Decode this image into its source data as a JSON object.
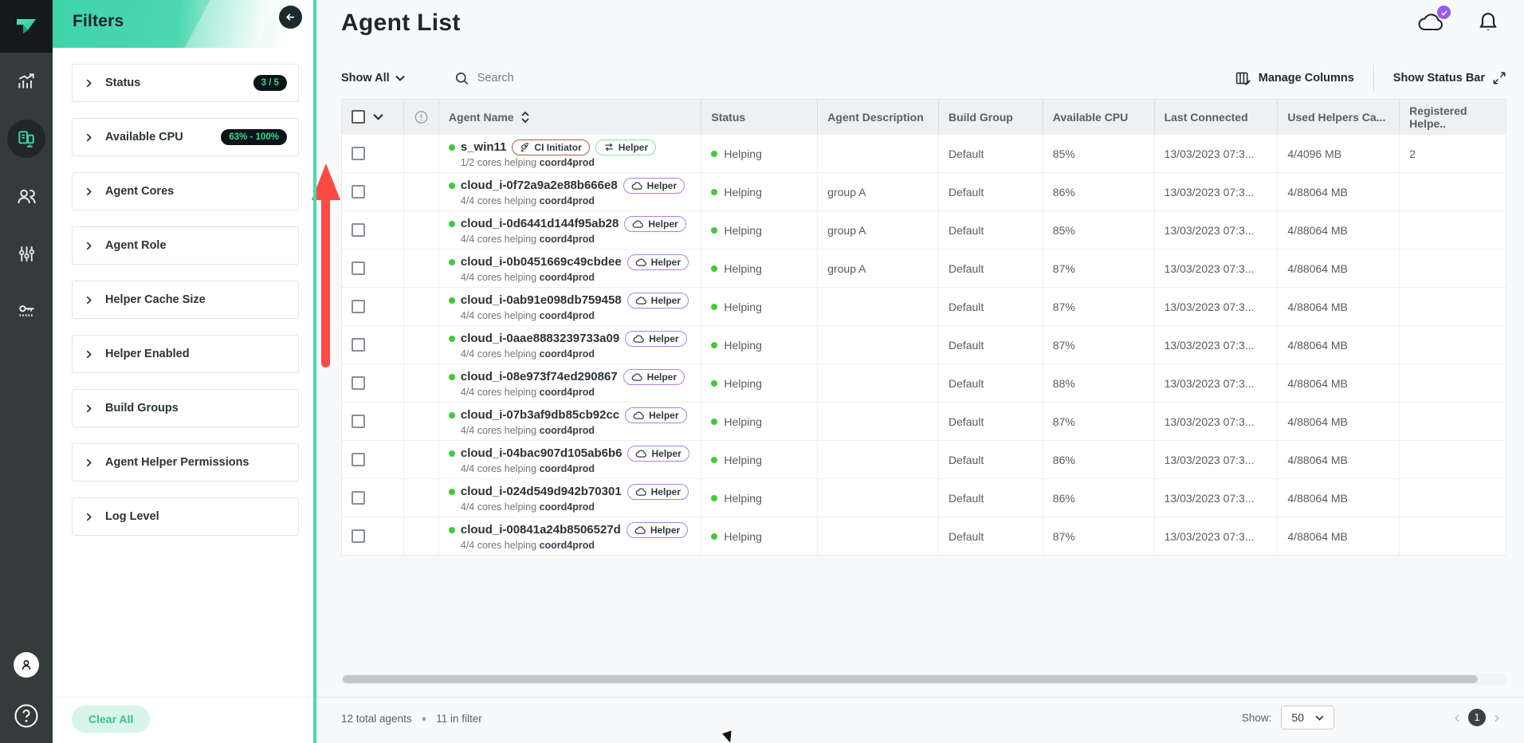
{
  "accent": {
    "teal": "#47dab0",
    "badge_green": "#2fdf8d",
    "status_green": "#3fcb3b",
    "purple_badge": "#9a5bf2",
    "red_arrow": "#fb4b43"
  },
  "sidebar": {
    "items": [
      {
        "id": "dashboard",
        "icon": "chart-icon",
        "active": false
      },
      {
        "id": "agents",
        "icon": "agents-icon",
        "active": true
      },
      {
        "id": "users",
        "icon": "users-icon",
        "active": false
      },
      {
        "id": "settings",
        "icon": "sliders-icon",
        "active": false
      },
      {
        "id": "license",
        "icon": "key-icon",
        "active": false
      }
    ]
  },
  "filters": {
    "title": "Filters",
    "items": [
      {
        "label": "Status",
        "badge": "3 / 5"
      },
      {
        "label": "Available CPU",
        "badge": "63% - 100%"
      },
      {
        "label": "Agent Cores",
        "badge": ""
      },
      {
        "label": "Agent Role",
        "badge": ""
      },
      {
        "label": "Helper Cache Size",
        "badge": ""
      },
      {
        "label": "Helper Enabled",
        "badge": ""
      },
      {
        "label": "Build Groups",
        "badge": ""
      },
      {
        "label": "Agent Helper Permissions",
        "badge": ""
      },
      {
        "label": "Log Level",
        "badge": ""
      }
    ],
    "clear_all_label": "Clear All"
  },
  "header": {
    "title": "Agent List"
  },
  "toolbar": {
    "show_all_label": "Show All",
    "search_placeholder": "Search",
    "manage_columns_label": "Manage Columns",
    "show_status_bar_label": "Show Status Bar"
  },
  "table": {
    "columns": {
      "name": "Agent Name",
      "status": "Status",
      "description": "Agent Description",
      "build_group": "Build Group",
      "available_cpu": "Available CPU",
      "last_connected": "Last Connected",
      "used_helpers": "Used Helpers Ca...",
      "registered_helpers": "Registered Helpe.."
    },
    "rows": [
      {
        "name": "s_win11",
        "tags": [
          {
            "label": "CI Initiator",
            "icon": "rocket-icon",
            "style": "ci"
          },
          {
            "label": "Helper",
            "icon": "swap-icon",
            "style": "green"
          }
        ],
        "cores": "1/2 cores helping",
        "coordinator": "coord4prod",
        "status": "Helping",
        "description": "",
        "build_group": "Default",
        "available_cpu": "85%",
        "last_connected": "13/03/2023 07:3...",
        "used_helpers": "4/4096 MB",
        "registered_helpers": "2"
      },
      {
        "name": "cloud_i-0f72a9a2e88b666e8",
        "tags": [
          {
            "label": "Helper",
            "icon": "cloud-icon",
            "style": "purple"
          }
        ],
        "cores": "4/4 cores helping",
        "coordinator": "coord4prod",
        "status": "Helping",
        "description": "group A",
        "build_group": "Default",
        "available_cpu": "86%",
        "last_connected": "13/03/2023 07:3...",
        "used_helpers": "4/88064 MB",
        "registered_helpers": ""
      },
      {
        "name": "cloud_i-0d6441d144f95ab28",
        "tags": [
          {
            "label": "Helper",
            "icon": "cloud-icon",
            "style": "purple"
          }
        ],
        "cores": "4/4 cores helping",
        "coordinator": "coord4prod",
        "status": "Helping",
        "description": "group A",
        "build_group": "Default",
        "available_cpu": "85%",
        "last_connected": "13/03/2023 07:3...",
        "used_helpers": "4/88064 MB",
        "registered_helpers": ""
      },
      {
        "name": "cloud_i-0b0451669c49cbdee",
        "tags": [
          {
            "label": "Helper",
            "icon": "cloud-icon",
            "style": "purple"
          }
        ],
        "cores": "4/4 cores helping",
        "coordinator": "coord4prod",
        "status": "Helping",
        "description": "group A",
        "build_group": "Default",
        "available_cpu": "87%",
        "last_connected": "13/03/2023 07:3...",
        "used_helpers": "4/88064 MB",
        "registered_helpers": ""
      },
      {
        "name": "cloud_i-0ab91e098db759458",
        "tags": [
          {
            "label": "Helper",
            "icon": "cloud-icon",
            "style": "purple"
          }
        ],
        "cores": "4/4 cores helping",
        "coordinator": "coord4prod",
        "status": "Helping",
        "description": "",
        "build_group": "Default",
        "available_cpu": "87%",
        "last_connected": "13/03/2023 07:3...",
        "used_helpers": "4/88064 MB",
        "registered_helpers": ""
      },
      {
        "name": "cloud_i-0aae8883239733a09",
        "tags": [
          {
            "label": "Helper",
            "icon": "cloud-icon",
            "style": "purple"
          }
        ],
        "cores": "4/4 cores helping",
        "coordinator": "coord4prod",
        "status": "Helping",
        "description": "",
        "build_group": "Default",
        "available_cpu": "87%",
        "last_connected": "13/03/2023 07:3...",
        "used_helpers": "4/88064 MB",
        "registered_helpers": ""
      },
      {
        "name": "cloud_i-08e973f74ed290867",
        "tags": [
          {
            "label": "Helper",
            "icon": "cloud-icon",
            "style": "purple"
          }
        ],
        "cores": "4/4 cores helping",
        "coordinator": "coord4prod",
        "status": "Helping",
        "description": "",
        "build_group": "Default",
        "available_cpu": "88%",
        "last_connected": "13/03/2023 07:3...",
        "used_helpers": "4/88064 MB",
        "registered_helpers": ""
      },
      {
        "name": "cloud_i-07b3af9db85cb92cc",
        "tags": [
          {
            "label": "Helper",
            "icon": "cloud-icon",
            "style": "purple"
          }
        ],
        "cores": "4/4 cores helping",
        "coordinator": "coord4prod",
        "status": "Helping",
        "description": "",
        "build_group": "Default",
        "available_cpu": "87%",
        "last_connected": "13/03/2023 07:3...",
        "used_helpers": "4/88064 MB",
        "registered_helpers": ""
      },
      {
        "name": "cloud_i-04bac907d105ab6b6",
        "tags": [
          {
            "label": "Helper",
            "icon": "cloud-icon",
            "style": "purple"
          }
        ],
        "cores": "4/4 cores helping",
        "coordinator": "coord4prod",
        "status": "Helping",
        "description": "",
        "build_group": "Default",
        "available_cpu": "86%",
        "last_connected": "13/03/2023 07:3...",
        "used_helpers": "4/88064 MB",
        "registered_helpers": ""
      },
      {
        "name": "cloud_i-024d549d942b70301",
        "tags": [
          {
            "label": "Helper",
            "icon": "cloud-icon",
            "style": "purple"
          }
        ],
        "cores": "4/4 cores helping",
        "coordinator": "coord4prod",
        "status": "Helping",
        "description": "",
        "build_group": "Default",
        "available_cpu": "86%",
        "last_connected": "13/03/2023 07:3...",
        "used_helpers": "4/88064 MB",
        "registered_helpers": ""
      },
      {
        "name": "cloud_i-00841a24b8506527d",
        "tags": [
          {
            "label": "Helper",
            "icon": "cloud-icon",
            "style": "purple"
          }
        ],
        "cores": "4/4 cores helping",
        "coordinator": "coord4prod",
        "status": "Helping",
        "description": "",
        "build_group": "Default",
        "available_cpu": "87%",
        "last_connected": "13/03/2023 07:3...",
        "used_helpers": "4/88064 MB",
        "registered_helpers": ""
      }
    ]
  },
  "footer": {
    "total_agents": "12 total agents",
    "in_filter": "11 in filter",
    "show_label": "Show:",
    "page_size": "50",
    "page": "1"
  }
}
